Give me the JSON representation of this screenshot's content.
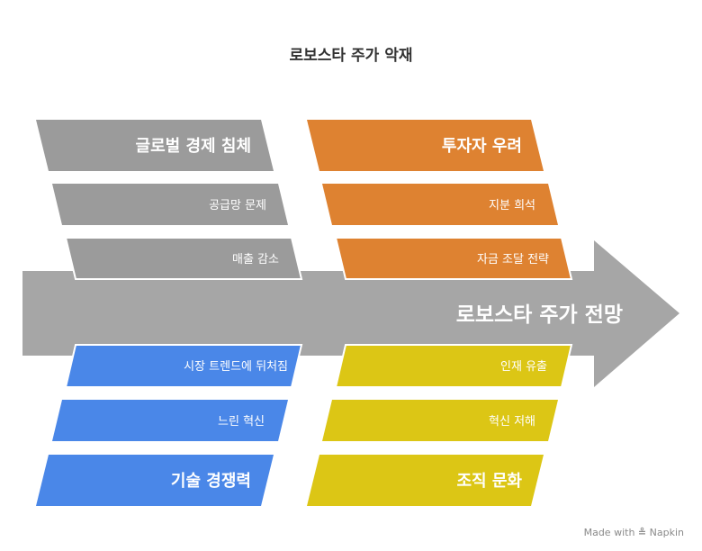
{
  "title": "로보스타 주가 악재",
  "spine_label": "로보스타 주가 전망",
  "colors": {
    "spine": "#a6a6a6",
    "gray": "#9b9b9b",
    "orange": "#de8231",
    "blue": "#4a87e8",
    "yellow": "#dcc615",
    "white": "#ffffff"
  },
  "categories": [
    {
      "id": "global",
      "label": "글로벌 경제 침체",
      "color": "gray",
      "causes": [
        "공급망 문제",
        "매출 감소"
      ]
    },
    {
      "id": "invest",
      "label": "투자자 우려",
      "color": "orange",
      "causes": [
        "지분 희석",
        "자금 조달 전략"
      ]
    },
    {
      "id": "tech",
      "label": "기술 경쟁력",
      "color": "blue",
      "causes": [
        "시장 트렌드에 뒤처짐",
        "느린 혁신"
      ]
    },
    {
      "id": "culture",
      "label": "조직 문화",
      "color": "yellow",
      "causes": [
        "인재 유출",
        "혁신 저해"
      ]
    }
  ],
  "footer": {
    "made_with": "Made with",
    "brand": "Napkin",
    "brand_icon": "napkin-logo-icon"
  }
}
